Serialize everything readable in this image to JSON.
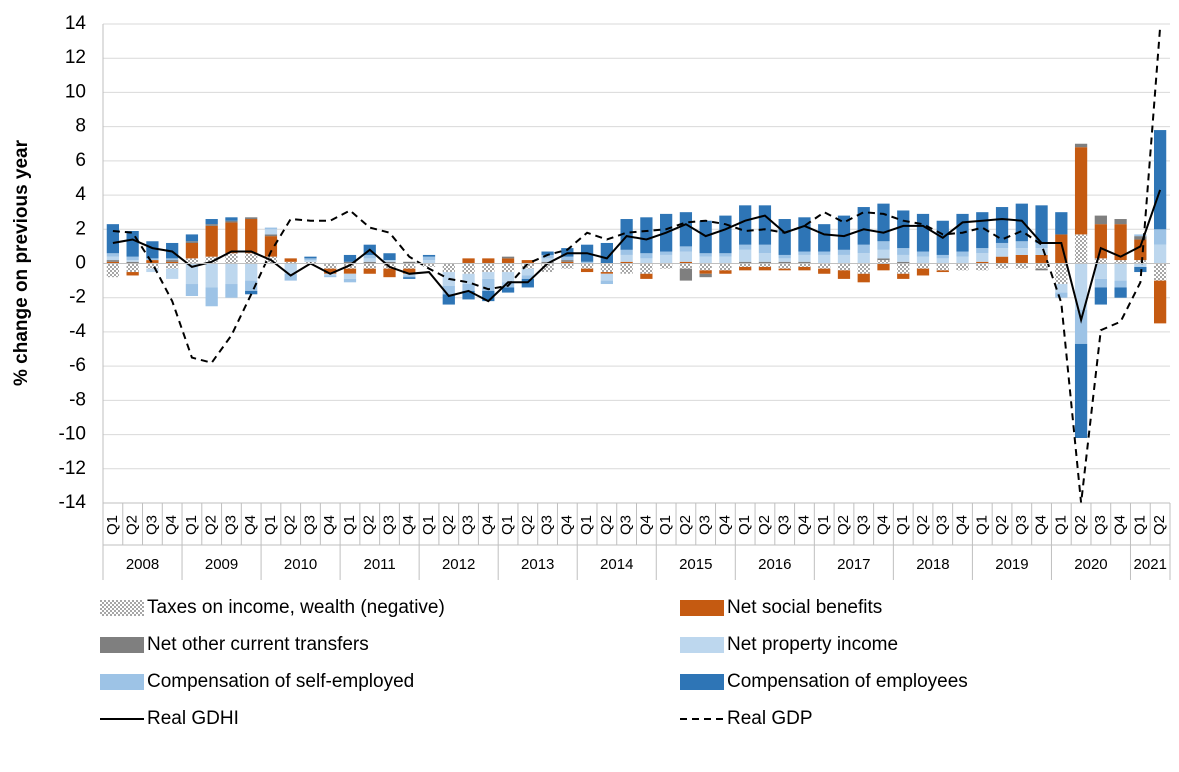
{
  "chart_data": {
    "type": "bar",
    "y_label": "% change on previous year",
    "categories": [
      "Q1",
      "Q2",
      "Q3",
      "Q4",
      "Q1",
      "Q2",
      "Q3",
      "Q4",
      "Q1",
      "Q2",
      "Q3",
      "Q4",
      "Q1",
      "Q2",
      "Q3",
      "Q4",
      "Q1",
      "Q2",
      "Q3",
      "Q4",
      "Q1",
      "Q2",
      "Q3",
      "Q4",
      "Q1",
      "Q2",
      "Q3",
      "Q4",
      "Q1",
      "Q2",
      "Q3",
      "Q4",
      "Q1",
      "Q2",
      "Q3",
      "Q4",
      "Q1",
      "Q2",
      "Q3",
      "Q4",
      "Q1",
      "Q2",
      "Q3",
      "Q4",
      "Q1",
      "Q2",
      "Q3",
      "Q4",
      "Q1",
      "Q2",
      "Q3",
      "Q4",
      "Q1",
      "Q2"
    ],
    "category_years": [
      "2008",
      null,
      null,
      null,
      "2009",
      null,
      null,
      null,
      "2010",
      null,
      null,
      null,
      "2011",
      null,
      null,
      null,
      "2012",
      null,
      null,
      null,
      "2013",
      null,
      null,
      null,
      "2014",
      null,
      null,
      null,
      "2015",
      null,
      null,
      null,
      "2016",
      null,
      null,
      null,
      "2017",
      null,
      null,
      null,
      "2018",
      null,
      null,
      null,
      "2019",
      null,
      null,
      null,
      "2020",
      null,
      null,
      null,
      "2021",
      null
    ],
    "ylim": [
      -14,
      14
    ],
    "yticks": [
      -14,
      -12,
      -10,
      -8,
      -6,
      -4,
      -2,
      0,
      2,
      4,
      6,
      8,
      10,
      12,
      14
    ],
    "grid": true,
    "series": [
      {
        "name": "Taxes on income, wealth (negative)",
        "color": "#a6a6a6",
        "hatch": true,
        "values": [
          -0.8,
          -0.5,
          -0.3,
          -0.3,
          0.3,
          0.4,
          0.6,
          0.6,
          0.4,
          0.1,
          0.1,
          -0.3,
          -0.3,
          -0.3,
          -0.3,
          -0.3,
          -0.2,
          -0.5,
          -0.6,
          -0.5,
          -0.5,
          -0.3,
          -0.5,
          -0.3,
          -0.3,
          -0.5,
          -0.6,
          -0.6,
          -0.3,
          -0.3,
          -0.4,
          -0.4,
          -0.2,
          -0.2,
          -0.3,
          -0.2,
          -0.3,
          -0.4,
          -0.6,
          0.2,
          -0.6,
          -0.3,
          -0.4,
          -0.4,
          -0.4,
          -0.3,
          -0.3,
          -0.3,
          -1.2,
          1.7,
          0.3,
          0.2,
          0.2,
          -1.0
        ]
      },
      {
        "name": "Net social benefits",
        "color": "#c55a11",
        "values": [
          0.1,
          -0.2,
          0.2,
          0.1,
          0.9,
          1.8,
          1.8,
          2.0,
          1.2,
          0.2,
          0,
          -0.3,
          -0.3,
          -0.3,
          -0.5,
          -0.3,
          0,
          0,
          0.3,
          0.3,
          0.3,
          0.2,
          0,
          0.1,
          -0.2,
          -0.1,
          0.1,
          -0.3,
          0,
          0.1,
          -0.2,
          -0.2,
          -0.2,
          -0.2,
          -0.1,
          -0.2,
          -0.3,
          -0.5,
          -0.5,
          -0.4,
          -0.3,
          -0.4,
          -0.1,
          0,
          0.1,
          0.4,
          0.5,
          0.5,
          1.7,
          5.1,
          2.0,
          2.1,
          1.2,
          -2.5
        ]
      },
      {
        "name": "Net other current transfers",
        "color": "#7f7f7f",
        "values": [
          0.1,
          0.1,
          0,
          0.1,
          0.1,
          0.1,
          0.1,
          0.1,
          0.1,
          0,
          0,
          0,
          0.1,
          0.1,
          0.1,
          0.1,
          0,
          0,
          0,
          0,
          0.1,
          0,
          0.1,
          0.1,
          0,
          0,
          0,
          0,
          0,
          -0.7,
          -0.2,
          0,
          0.1,
          0.1,
          0.1,
          0.1,
          0,
          0,
          0,
          0.1,
          0.1,
          0,
          0,
          0,
          0,
          0,
          0,
          -0.1,
          0,
          0.2,
          0.5,
          0.3,
          0.2,
          0
        ]
      },
      {
        "name": "Net property income",
        "color": "#bdd7ee",
        "values": [
          0.2,
          0.1,
          -0.2,
          -0.6,
          -1.2,
          -1.4,
          -1.2,
          -1.0,
          0.3,
          -0.6,
          0.1,
          -0.1,
          -0.3,
          0.2,
          0.1,
          -0.1,
          0.2,
          -0.8,
          -0.6,
          -0.4,
          -0.6,
          -0.4,
          0.2,
          0,
          0,
          -0.4,
          0.4,
          0.3,
          0.5,
          0.6,
          0.4,
          0.4,
          0.7,
          0.5,
          0.2,
          0.4,
          0.5,
          0.5,
          0.6,
          0.5,
          0.4,
          0.4,
          0.3,
          0.4,
          0.5,
          0.5,
          0.4,
          0.4,
          -0.5,
          -2.7,
          -0.9,
          -1.0,
          -0.2,
          1.1
        ]
      },
      {
        "name": "Compensation of self-employed",
        "color": "#9dc3e6",
        "values": [
          0.2,
          0.2,
          0.1,
          0.1,
          -0.7,
          -1.1,
          -0.8,
          -0.6,
          0.1,
          -0.4,
          0.1,
          -0.1,
          -0.2,
          0.2,
          0,
          -0.1,
          0.2,
          -0.5,
          -0.4,
          -0.7,
          -0.3,
          -0.2,
          0.2,
          0.2,
          0.1,
          -0.2,
          0.3,
          0.3,
          0.2,
          0.3,
          0.2,
          0.2,
          0.3,
          0.5,
          0.2,
          0.2,
          0.2,
          0.3,
          0.5,
          0.5,
          0.4,
          0.3,
          0.2,
          0.3,
          0.3,
          0.3,
          0.4,
          0.3,
          -0.3,
          -2.0,
          -0.5,
          -0.4,
          0.1,
          0.9
        ]
      },
      {
        "name": "Compensation of employees",
        "color": "#2e75b6",
        "values": [
          1.7,
          1.5,
          1.0,
          0.9,
          0.4,
          0.3,
          0.2,
          -0.2,
          0,
          0,
          0.1,
          0,
          0.4,
          0.6,
          0.4,
          -0.1,
          0.1,
          -0.6,
          -0.5,
          -0.6,
          -0.3,
          -0.5,
          0.2,
          0.5,
          1.0,
          1.2,
          1.8,
          2.1,
          2.2,
          2.0,
          1.9,
          2.2,
          2.3,
          2.3,
          2.1,
          2.0,
          1.6,
          2.0,
          2.2,
          2.2,
          2.2,
          2.2,
          2.0,
          2.2,
          2.1,
          2.1,
          2.2,
          2.2,
          1.3,
          -5.5,
          -1.0,
          -0.6,
          -0.3,
          5.8
        ]
      },
      {
        "name": "Real GDHI",
        "type": "line",
        "color": "#000000",
        "values": [
          1.2,
          1.4,
          0.9,
          0.7,
          -0.2,
          0.1,
          0.7,
          0.7,
          0.2,
          -0.7,
          0.0,
          -0.6,
          -0.1,
          0.8,
          -0.2,
          -0.6,
          -0.5,
          -1.9,
          -1.6,
          -2.2,
          -1.1,
          -1.1,
          0.0,
          0.6,
          0.6,
          0.3,
          1.6,
          1.4,
          1.8,
          2.3,
          1.6,
          2.0,
          2.5,
          2.8,
          1.8,
          2.2,
          1.7,
          1.6,
          2.0,
          1.8,
          2.2,
          2.2,
          1.5,
          2.4,
          2.5,
          2.6,
          2.5,
          1.2,
          1.2,
          -3.3,
          0.9,
          0.4,
          1.0,
          4.3
        ]
      },
      {
        "name": "Real GDP",
        "type": "line",
        "dash": true,
        "color": "#000000",
        "values": [
          1.9,
          1.8,
          0.0,
          -2.2,
          -5.5,
          -5.8,
          -4.2,
          -1.8,
          0.7,
          2.6,
          2.5,
          2.5,
          3.1,
          2.1,
          1.8,
          0.4,
          -0.3,
          -0.9,
          -1.1,
          -1.5,
          -1.3,
          0.0,
          0.5,
          0.8,
          1.8,
          1.4,
          1.8,
          1.9,
          2.0,
          2.4,
          2.5,
          2.3,
          1.9,
          2.0,
          1.8,
          2.2,
          3.0,
          2.4,
          3.0,
          2.9,
          2.5,
          2.3,
          1.7,
          1.8,
          2.1,
          1.4,
          1.9,
          1.1,
          -2.3,
          -14.0,
          -3.9,
          -3.4,
          -1.1,
          13.8
        ]
      }
    ]
  }
}
